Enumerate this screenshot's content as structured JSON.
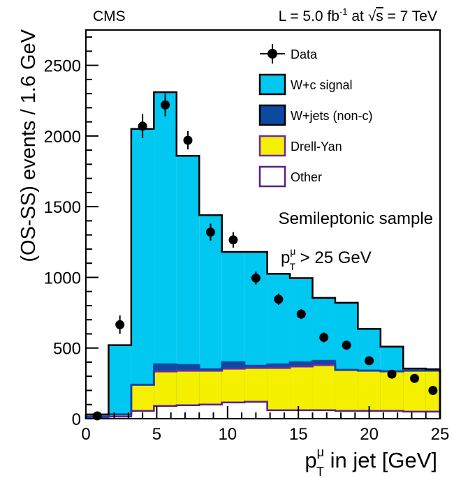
{
  "header": {
    "experiment": "CMS",
    "lumi_prefix": "L = 5.0 fb",
    "lumi_exp": "-1",
    "lumi_mid": " at ",
    "sqrt_symbol": "√",
    "sqrt_arg": "s",
    "lumi_suffix": " = 7 TeV"
  },
  "annotations": {
    "sample": "Semileptonic sample",
    "cut_p": "p",
    "cut_sup": "μ",
    "cut_sub": "T",
    "cut_rest": " > 25 GeV"
  },
  "axes": {
    "ylabel": "(OS-SS) events / 1.6 GeV",
    "xlabel_p": "p",
    "xlabel_sup": "μ",
    "xlabel_sub": "T",
    "xlabel_rest": " in jet [GeV]"
  },
  "colors": {
    "signal": "#00c8f0",
    "wjets": "#0b4aa0",
    "drellyan": "#f5f000",
    "other": "#ffffff",
    "drellyan_line": "#6a2aa8",
    "other_line": "#5a1f8e",
    "data": "#000000"
  },
  "chart_data": {
    "type": "histogram",
    "xlim": [
      0,
      25
    ],
    "ylim": [
      0,
      2750
    ],
    "x_ticks": [
      0,
      5,
      10,
      15,
      20,
      25
    ],
    "y_ticks": [
      0,
      500,
      1000,
      1500,
      2000,
      2500
    ],
    "bin_edges": [
      0,
      1.6,
      3.2,
      4.8,
      6.4,
      8.0,
      9.6,
      11.2,
      12.8,
      14.4,
      16.0,
      17.6,
      19.2,
      20.8,
      22.4,
      24.0,
      25.0
    ],
    "stack": [
      {
        "name": "Other",
        "key": "other",
        "values": [
          5,
          15,
          55,
          90,
          95,
          100,
          115,
          120,
          60,
          60,
          60,
          55,
          55,
          55,
          50,
          50
        ]
      },
      {
        "name": "Drell-Yan",
        "key": "drellyan",
        "values": [
          10,
          15,
          185,
          245,
          245,
          240,
          240,
          240,
          300,
          310,
          320,
          290,
          285,
          280,
          290,
          290
        ]
      },
      {
        "name": "W+jets (non-c)",
        "key": "wjets",
        "values": [
          0,
          0,
          0,
          50,
          40,
          10,
          45,
          15,
          25,
          30,
          30,
          0,
          0,
          0,
          0,
          0
        ]
      },
      {
        "name": "W+c signal",
        "key": "signal",
        "values": [
          15,
          490,
          1810,
          1925,
          1480,
          1090,
          780,
          805,
          640,
          595,
          445,
          475,
          295,
          175,
          15,
          10
        ]
      }
    ],
    "data": {
      "name": "Data",
      "x": [
        0.8,
        2.4,
        4.0,
        5.6,
        7.2,
        8.8,
        10.4,
        12.0,
        13.6,
        15.2,
        16.8,
        18.4,
        20.0,
        21.6,
        23.2,
        24.5
      ],
      "y": [
        20,
        665,
        2070,
        2220,
        1970,
        1320,
        1265,
        995,
        845,
        740,
        575,
        520,
        410,
        315,
        285,
        200
      ],
      "err": [
        15,
        65,
        85,
        80,
        65,
        60,
        55,
        45,
        40,
        35,
        35,
        30,
        25,
        20,
        20,
        15
      ]
    },
    "legend": {
      "position": "top-right",
      "entries": [
        {
          "label": "Data",
          "key": "data"
        },
        {
          "label": "W+c signal",
          "key": "signal"
        },
        {
          "label": "W+jets (non-c)",
          "key": "wjets"
        },
        {
          "label": "Drell-Yan",
          "key": "drellyan"
        },
        {
          "label": "Other",
          "key": "other"
        }
      ]
    }
  }
}
